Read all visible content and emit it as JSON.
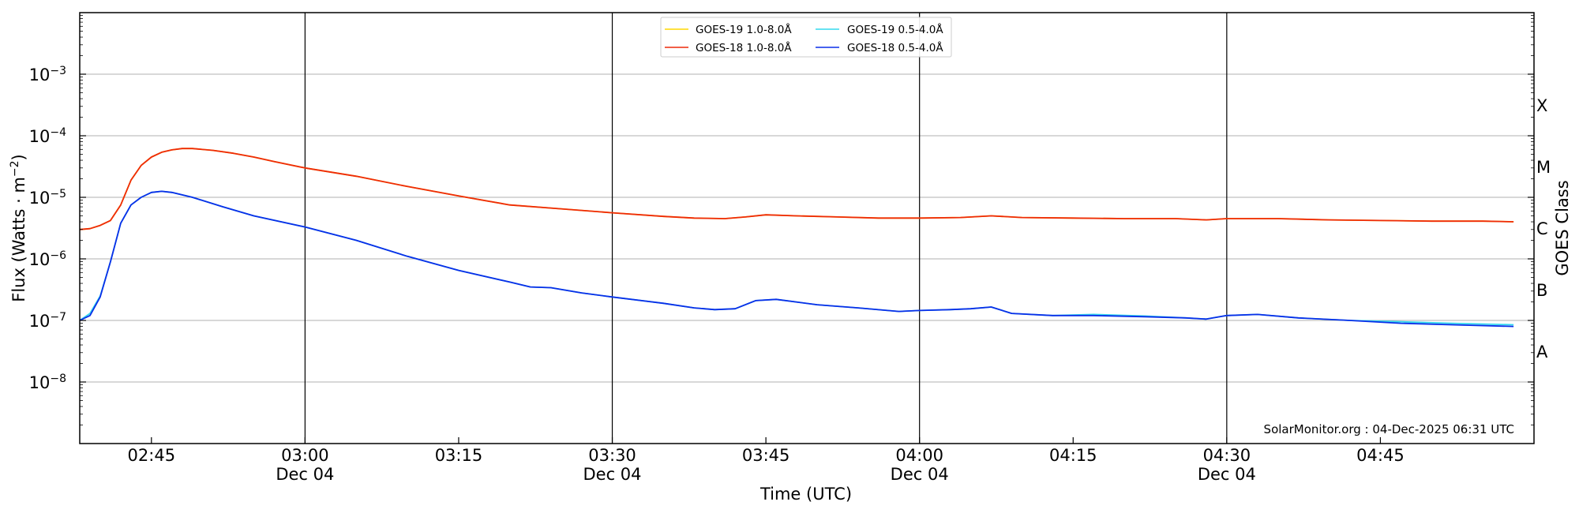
{
  "chart_data": {
    "type": "line",
    "xlabel": "Time (UTC)",
    "ylabel_prefix": "Flux (Watts · m",
    "ylabel_exp": "−2",
    "ylabel_suffix": ")",
    "y2label": "GOES Class",
    "yscale": "log",
    "ylim_exp": [
      -9,
      -2
    ],
    "xlim": [
      "02:38",
      "05:00"
    ],
    "x_ticks": [
      {
        "t": "02:45",
        "line1": "02:45",
        "line2": ""
      },
      {
        "t": "03:00",
        "line1": "03:00",
        "line2": "Dec 04"
      },
      {
        "t": "03:15",
        "line1": "03:15",
        "line2": ""
      },
      {
        "t": "03:30",
        "line1": "03:30",
        "line2": "Dec 04"
      },
      {
        "t": "03:45",
        "line1": "03:45",
        "line2": ""
      },
      {
        "t": "04:00",
        "line1": "04:00",
        "line2": "Dec 04"
      },
      {
        "t": "04:15",
        "line1": "04:15",
        "line2": ""
      },
      {
        "t": "04:30",
        "line1": "04:30",
        "line2": "Dec 04"
      },
      {
        "t": "04:45",
        "line1": "04:45",
        "line2": ""
      }
    ],
    "vlines": [
      "03:00",
      "03:30",
      "04:00",
      "04:30"
    ],
    "y_ticks": [
      {
        "exp": -8,
        "base": "10",
        "sup": "−8"
      },
      {
        "exp": -7,
        "base": "10",
        "sup": "−7"
      },
      {
        "exp": -6,
        "base": "10",
        "sup": "−6"
      },
      {
        "exp": -5,
        "base": "10",
        "sup": "−5"
      },
      {
        "exp": -4,
        "base": "10",
        "sup": "−4"
      },
      {
        "exp": -3,
        "base": "10",
        "sup": "−3"
      }
    ],
    "goes_classes": [
      {
        "label": "A",
        "exp": -7.5
      },
      {
        "label": "B",
        "exp": -6.5
      },
      {
        "label": "C",
        "exp": -5.5
      },
      {
        "label": "M",
        "exp": -4.5
      },
      {
        "label": "X",
        "exp": -3.5
      }
    ],
    "grid": true,
    "legend_position": "top-center",
    "credit": "SolarMonitor.org : 04-Dec-2025 06:31 UTC",
    "series": [
      {
        "name": "GOES-19 1.0-8.0Å",
        "color": "#ffd700",
        "points": [
          [
            "02:38",
            3e-06
          ],
          [
            "02:39",
            3.1e-06
          ],
          [
            "02:40",
            3.5e-06
          ],
          [
            "02:41",
            4.2e-06
          ],
          [
            "02:42",
            7.5e-06
          ],
          [
            "02:43",
            1.9e-05
          ],
          [
            "02:44",
            3.3e-05
          ],
          [
            "02:45",
            4.5e-05
          ],
          [
            "02:46",
            5.4e-05
          ],
          [
            "02:47",
            5.9e-05
          ],
          [
            "02:48",
            6.2e-05
          ],
          [
            "02:49",
            6.2e-05
          ],
          [
            "02:51",
            5.8e-05
          ],
          [
            "02:53",
            5.2e-05
          ],
          [
            "02:55",
            4.5e-05
          ],
          [
            "02:57",
            3.8e-05
          ],
          [
            "03:00",
            3e-05
          ],
          [
            "03:05",
            2.2e-05
          ],
          [
            "03:10",
            1.5e-05
          ],
          [
            "03:15",
            1.05e-05
          ],
          [
            "03:20",
            7.5e-06
          ],
          [
            "03:25",
            6.5e-06
          ],
          [
            "03:30",
            5.6e-06
          ],
          [
            "03:35",
            4.9e-06
          ],
          [
            "03:38",
            4.6e-06
          ],
          [
            "03:41",
            4.5e-06
          ],
          [
            "03:43",
            4.8e-06
          ],
          [
            "03:45",
            5.2e-06
          ],
          [
            "03:48",
            5e-06
          ],
          [
            "03:52",
            4.8e-06
          ],
          [
            "03:56",
            4.6e-06
          ],
          [
            "04:00",
            4.6e-06
          ],
          [
            "04:04",
            4.7e-06
          ],
          [
            "04:07",
            5e-06
          ],
          [
            "04:10",
            4.7e-06
          ],
          [
            "04:15",
            4.6e-06
          ],
          [
            "04:20",
            4.5e-06
          ],
          [
            "04:25",
            4.5e-06
          ],
          [
            "04:28",
            4.3e-06
          ],
          [
            "04:30",
            4.5e-06
          ],
          [
            "04:35",
            4.5e-06
          ],
          [
            "04:40",
            4.3e-06
          ],
          [
            "04:45",
            4.2e-06
          ],
          [
            "04:50",
            4.1e-06
          ],
          [
            "04:55",
            4.1e-06
          ],
          [
            "04:58",
            4e-06
          ]
        ]
      },
      {
        "name": "GOES-18 1.0-8.0Å",
        "color": "#ee2a0a",
        "points": [
          [
            "02:38",
            3e-06
          ],
          [
            "02:39",
            3.1e-06
          ],
          [
            "02:40",
            3.5e-06
          ],
          [
            "02:41",
            4.2e-06
          ],
          [
            "02:42",
            7.5e-06
          ],
          [
            "02:43",
            1.9e-05
          ],
          [
            "02:44",
            3.3e-05
          ],
          [
            "02:45",
            4.5e-05
          ],
          [
            "02:46",
            5.4e-05
          ],
          [
            "02:47",
            5.9e-05
          ],
          [
            "02:48",
            6.2e-05
          ],
          [
            "02:49",
            6.2e-05
          ],
          [
            "02:51",
            5.8e-05
          ],
          [
            "02:53",
            5.2e-05
          ],
          [
            "02:55",
            4.5e-05
          ],
          [
            "02:57",
            3.8e-05
          ],
          [
            "03:00",
            3e-05
          ],
          [
            "03:05",
            2.2e-05
          ],
          [
            "03:10",
            1.5e-05
          ],
          [
            "03:15",
            1.05e-05
          ],
          [
            "03:20",
            7.5e-06
          ],
          [
            "03:25",
            6.5e-06
          ],
          [
            "03:30",
            5.6e-06
          ],
          [
            "03:35",
            4.9e-06
          ],
          [
            "03:38",
            4.6e-06
          ],
          [
            "03:41",
            4.5e-06
          ],
          [
            "03:43",
            4.8e-06
          ],
          [
            "03:45",
            5.2e-06
          ],
          [
            "03:48",
            5e-06
          ],
          [
            "03:52",
            4.8e-06
          ],
          [
            "03:56",
            4.6e-06
          ],
          [
            "04:00",
            4.6e-06
          ],
          [
            "04:04",
            4.7e-06
          ],
          [
            "04:07",
            5e-06
          ],
          [
            "04:10",
            4.7e-06
          ],
          [
            "04:15",
            4.6e-06
          ],
          [
            "04:20",
            4.5e-06
          ],
          [
            "04:25",
            4.5e-06
          ],
          [
            "04:28",
            4.3e-06
          ],
          [
            "04:30",
            4.5e-06
          ],
          [
            "04:35",
            4.5e-06
          ],
          [
            "04:40",
            4.3e-06
          ],
          [
            "04:45",
            4.2e-06
          ],
          [
            "04:50",
            4.1e-06
          ],
          [
            "04:55",
            4.1e-06
          ],
          [
            "04:58",
            4e-06
          ]
        ]
      },
      {
        "name": "GOES-19 0.5-4.0Å",
        "color": "#34d8ee",
        "points": [
          [
            "02:38",
            1e-07
          ],
          [
            "02:39",
            1.3e-07
          ],
          [
            "02:40",
            2.5e-07
          ],
          [
            "02:41",
            9e-07
          ],
          [
            "02:42",
            3.8e-06
          ],
          [
            "02:43",
            7.5e-06
          ],
          [
            "02:44",
            1e-05
          ],
          [
            "02:45",
            1.2e-05
          ],
          [
            "02:46",
            1.25e-05
          ],
          [
            "02:47",
            1.2e-05
          ],
          [
            "02:49",
            1e-05
          ],
          [
            "02:52",
            7e-06
          ],
          [
            "02:55",
            5e-06
          ],
          [
            "03:00",
            3.3e-06
          ],
          [
            "03:05",
            2e-06
          ],
          [
            "03:10",
            1.1e-06
          ],
          [
            "03:15",
            6.5e-07
          ],
          [
            "03:20",
            4.2e-07
          ],
          [
            "03:22",
            3.5e-07
          ],
          [
            "03:24",
            3.4e-07
          ],
          [
            "03:27",
            2.8e-07
          ],
          [
            "03:30",
            2.4e-07
          ],
          [
            "03:35",
            1.9e-07
          ],
          [
            "03:38",
            1.6e-07
          ],
          [
            "03:40",
            1.5e-07
          ],
          [
            "03:42",
            1.55e-07
          ],
          [
            "03:44",
            2.1e-07
          ],
          [
            "03:46",
            2.2e-07
          ],
          [
            "03:50",
            1.8e-07
          ],
          [
            "03:54",
            1.6e-07
          ],
          [
            "03:58",
            1.4e-07
          ],
          [
            "04:00",
            1.45e-07
          ],
          [
            "04:03",
            1.5e-07
          ],
          [
            "04:05",
            1.55e-07
          ],
          [
            "04:07",
            1.65e-07
          ],
          [
            "04:09",
            1.3e-07
          ],
          [
            "04:13",
            1.2e-07
          ],
          [
            "04:17",
            1.25e-07
          ],
          [
            "04:22",
            1.18e-07
          ],
          [
            "04:26",
            1.1e-07
          ],
          [
            "04:28",
            1.05e-07
          ],
          [
            "04:30",
            1.2e-07
          ],
          [
            "04:33",
            1.25e-07
          ],
          [
            "04:37",
            1.1e-07
          ],
          [
            "04:42",
            1e-07
          ],
          [
            "04:47",
            9.5e-08
          ],
          [
            "04:52",
            9e-08
          ],
          [
            "04:58",
            8.5e-08
          ]
        ]
      },
      {
        "name": "GOES-18 0.5-4.0Å",
        "color": "#0a2ee8",
        "points": [
          [
            "02:38",
            1e-07
          ],
          [
            "02:39",
            1.2e-07
          ],
          [
            "02:40",
            2.4e-07
          ],
          [
            "02:41",
            9e-07
          ],
          [
            "02:42",
            3.8e-06
          ],
          [
            "02:43",
            7.5e-06
          ],
          [
            "02:44",
            1e-05
          ],
          [
            "02:45",
            1.2e-05
          ],
          [
            "02:46",
            1.25e-05
          ],
          [
            "02:47",
            1.2e-05
          ],
          [
            "02:49",
            1e-05
          ],
          [
            "02:52",
            7e-06
          ],
          [
            "02:55",
            5e-06
          ],
          [
            "03:00",
            3.3e-06
          ],
          [
            "03:05",
            2e-06
          ],
          [
            "03:10",
            1.1e-06
          ],
          [
            "03:15",
            6.5e-07
          ],
          [
            "03:20",
            4.2e-07
          ],
          [
            "03:22",
            3.5e-07
          ],
          [
            "03:24",
            3.4e-07
          ],
          [
            "03:27",
            2.8e-07
          ],
          [
            "03:30",
            2.4e-07
          ],
          [
            "03:35",
            1.9e-07
          ],
          [
            "03:38",
            1.6e-07
          ],
          [
            "03:40",
            1.5e-07
          ],
          [
            "03:42",
            1.55e-07
          ],
          [
            "03:44",
            2.1e-07
          ],
          [
            "03:46",
            2.2e-07
          ],
          [
            "03:50",
            1.8e-07
          ],
          [
            "03:54",
            1.6e-07
          ],
          [
            "03:58",
            1.4e-07
          ],
          [
            "04:00",
            1.45e-07
          ],
          [
            "04:03",
            1.5e-07
          ],
          [
            "04:05",
            1.55e-07
          ],
          [
            "04:07",
            1.65e-07
          ],
          [
            "04:09",
            1.3e-07
          ],
          [
            "04:13",
            1.2e-07
          ],
          [
            "04:17",
            1.2e-07
          ],
          [
            "04:22",
            1.15e-07
          ],
          [
            "04:26",
            1.1e-07
          ],
          [
            "04:28",
            1.05e-07
          ],
          [
            "04:30",
            1.2e-07
          ],
          [
            "04:33",
            1.25e-07
          ],
          [
            "04:37",
            1.1e-07
          ],
          [
            "04:42",
            1e-07
          ],
          [
            "04:47",
            9e-08
          ],
          [
            "04:52",
            8.5e-08
          ],
          [
            "04:58",
            8e-08
          ]
        ]
      }
    ]
  }
}
